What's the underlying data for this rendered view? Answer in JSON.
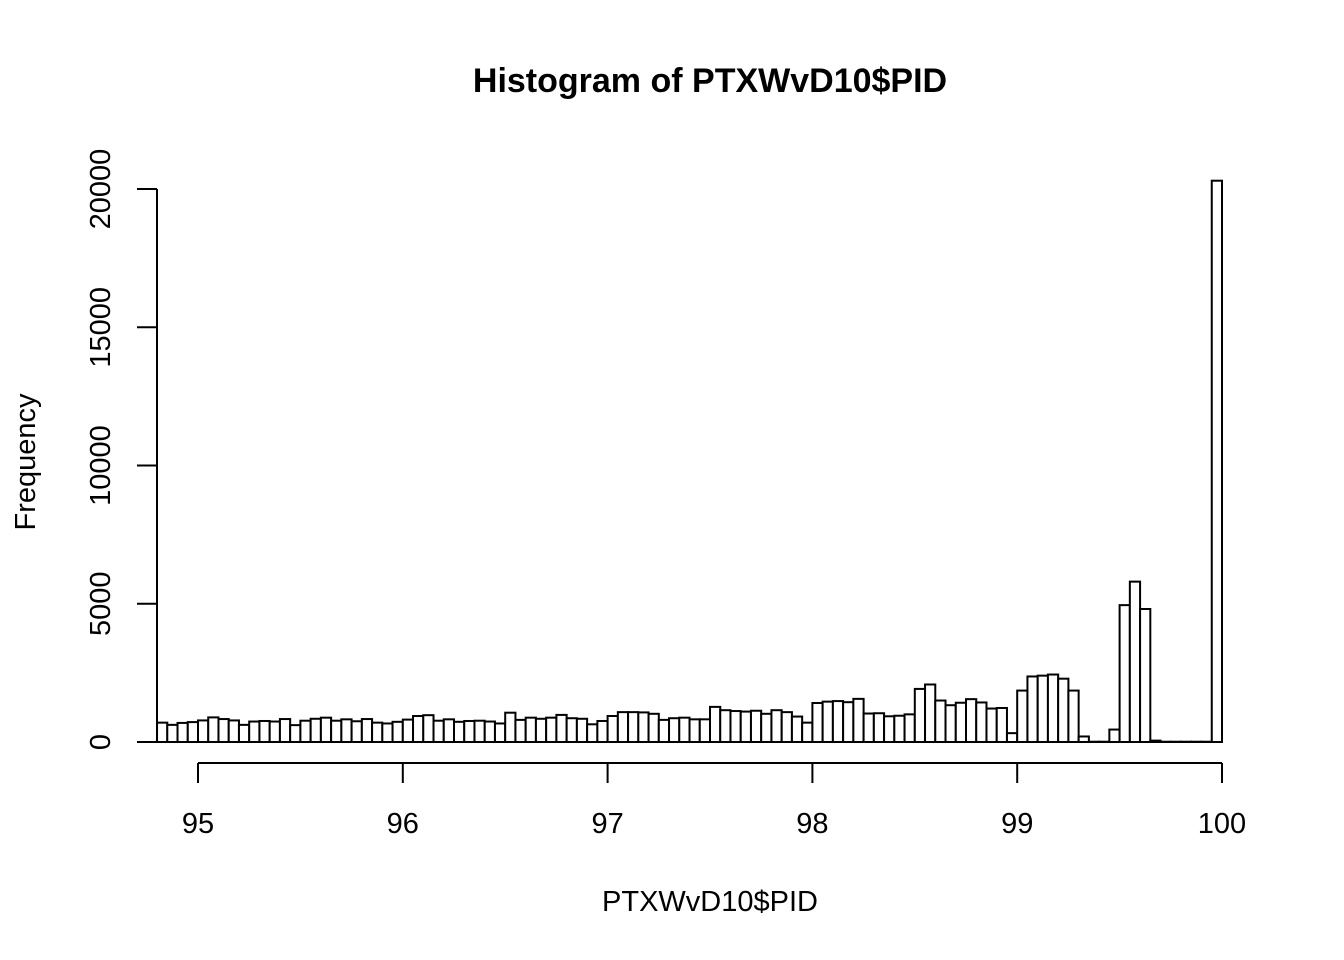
{
  "chart_data": {
    "type": "bar",
    "title": "Histogram of PTXWvD10$PID",
    "xlabel": "PTXWvD10$PID",
    "ylabel": "Frequency",
    "bin_width": 0.05,
    "bin_start": 94.8,
    "x_ticks": [
      "95",
      "96",
      "97",
      "98",
      "99",
      "100"
    ],
    "x_tick_values": [
      95,
      96,
      97,
      98,
      99,
      100
    ],
    "y_ticks": [
      "0",
      "5000",
      "10000",
      "15000",
      "20000"
    ],
    "y_tick_values": [
      0,
      5000,
      10000,
      15000,
      20000
    ],
    "xlim": [
      94.8,
      100
    ],
    "ylim": [
      0,
      20300
    ],
    "grid": false,
    "colors": {
      "bar_fill": "#ffffff",
      "bar_stroke": "#000000"
    },
    "values": [
      700,
      620,
      690,
      720,
      780,
      890,
      830,
      780,
      620,
      740,
      760,
      740,
      830,
      610,
      770,
      840,
      880,
      770,
      820,
      750,
      830,
      700,
      670,
      730,
      810,
      940,
      970,
      770,
      820,
      730,
      760,
      770,
      740,
      670,
      1060,
      800,
      880,
      840,
      880,
      980,
      860,
      840,
      640,
      760,
      940,
      1080,
      1080,
      1070,
      1020,
      800,
      860,
      880,
      820,
      820,
      1270,
      1150,
      1120,
      1100,
      1130,
      1020,
      1150,
      1080,
      920,
      700,
      1410,
      1460,
      1480,
      1440,
      1560,
      1030,
      1040,
      930,
      950,
      1000,
      1920,
      2080,
      1500,
      1330,
      1420,
      1550,
      1430,
      1210,
      1230,
      320,
      1860,
      2370,
      2400,
      2440,
      2290,
      1860,
      200,
      10,
      10,
      450,
      4950,
      5800,
      4810,
      50,
      10,
      10,
      10,
      10,
      10,
      20300
    ]
  }
}
